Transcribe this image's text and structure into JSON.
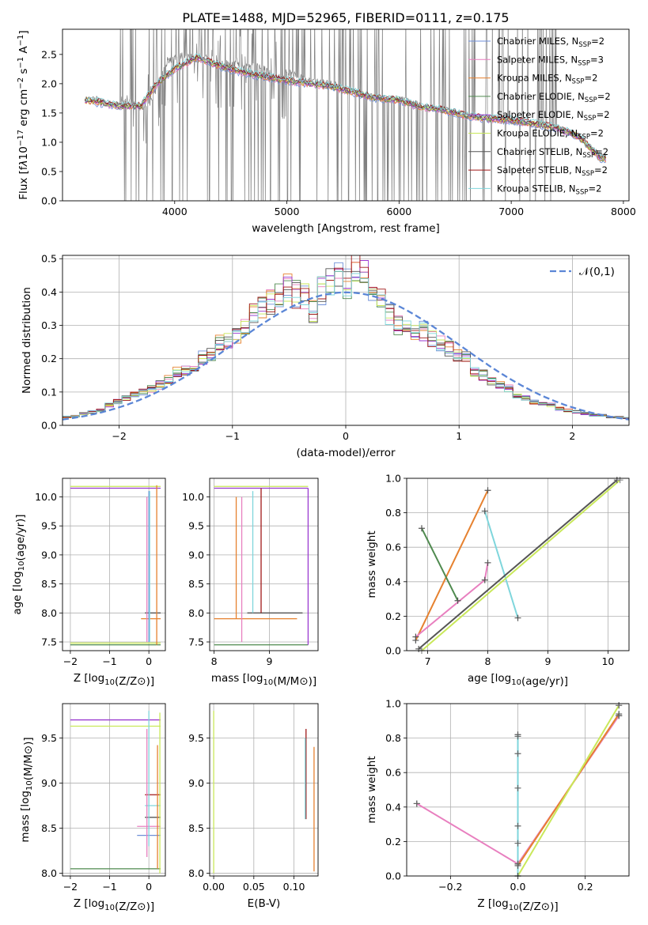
{
  "figure": {
    "title": "PLATE=1488, MJD=52965, FIBERID=0111, z=0.175"
  },
  "colors": {
    "observed": "#808080",
    "models": [
      "#6f8fd8",
      "#e87fbf",
      "#e6812f",
      "#4f8a4f",
      "#9a3ad0",
      "#c9e85a",
      "#555555",
      "#a01818",
      "#7fd6dc"
    ],
    "gauss": "#5b86d6"
  },
  "chart_data": [
    {
      "id": "spectrum",
      "type": "line",
      "xlabel": "wavelength [Angstrom, rest frame]",
      "ylabel": "Flux [f_λ 10^-17 erg cm^-2 s^-1 A^-1]",
      "xlim": [
        3000,
        8050
      ],
      "ylim": [
        0,
        2.93
      ],
      "xticks": [
        4000,
        5000,
        6000,
        7000,
        8000
      ],
      "yticks": [
        0.0,
        0.5,
        1.0,
        1.5,
        2.0,
        2.5
      ],
      "grid": false,
      "legend_position": "upper-right",
      "observed_sparse": {
        "x": [
          3200,
          3300,
          3400,
          3500,
          3600,
          3700,
          3800,
          3900,
          4000,
          4100,
          4200,
          4300,
          4400,
          4500,
          4600,
          4700,
          4800,
          4900,
          5000,
          5200,
          5400,
          5600,
          5800,
          6000,
          6200,
          6400,
          6600,
          6800,
          7000,
          7200,
          7400,
          7600,
          7800
        ],
        "y": [
          1.72,
          1.74,
          1.65,
          1.66,
          1.7,
          1.6,
          1.7,
          2.3,
          2.45,
          2.5,
          2.4,
          2.45,
          2.35,
          2.35,
          2.3,
          2.3,
          2.25,
          2.1,
          2.2,
          2.05,
          2.0,
          1.85,
          1.75,
          1.75,
          1.62,
          1.55,
          1.45,
          1.4,
          1.35,
          1.3,
          1.25,
          1.1,
          0.75
        ]
      },
      "series": [
        {
          "name": "Chabrier MILES, N_SSP=2"
        },
        {
          "name": "Salpeter MILES, N_SSP=3"
        },
        {
          "name": "Kroupa MILES, N_SSP=2"
        },
        {
          "name": "Chabrier ELODIE, N_SSP=2"
        },
        {
          "name": "Salpeter ELODIE, N_SSP=2"
        },
        {
          "name": "Kroupa ELODIE, N_SSP=2"
        },
        {
          "name": "Chabrier STELIB, N_SSP=2"
        },
        {
          "name": "Salpeter STELIB, N_SSP=2"
        },
        {
          "name": "Kroupa STELIB, N_SSP=2"
        }
      ],
      "legend_labels": [
        {
          "pre": "Chabrier MILES, N",
          "sub": "SSP",
          "post": "=2"
        },
        {
          "pre": "Salpeter MILES, N",
          "sub": "SSP",
          "post": "=3"
        },
        {
          "pre": "Kroupa MILES, N",
          "sub": "SSP",
          "post": "=2"
        },
        {
          "pre": "Chabrier ELODIE, N",
          "sub": "SSP",
          "post": "=2"
        },
        {
          "pre": "Salpeter ELODIE, N",
          "sub": "SSP",
          "post": "=2"
        },
        {
          "pre": "Kroupa ELODIE, N",
          "sub": "SSP",
          "post": "=2"
        },
        {
          "pre": "Chabrier STELIB, N",
          "sub": "SSP",
          "post": "=2"
        },
        {
          "pre": "Salpeter STELIB, N",
          "sub": "SSP",
          "post": "=2"
        },
        {
          "pre": "Kroupa STELIB, N",
          "sub": "SSP",
          "post": "=2"
        }
      ],
      "model_continuum": {
        "x": [
          3200,
          3500,
          3700,
          3800,
          3900,
          4000,
          4200,
          4400,
          4600,
          4800,
          5000,
          5200,
          5400,
          5600,
          5800,
          6000,
          6200,
          6400,
          6600,
          6800,
          7000,
          7200,
          7400,
          7600,
          7800
        ],
        "y": [
          1.72,
          1.62,
          1.62,
          1.9,
          2.1,
          2.25,
          2.45,
          2.3,
          2.2,
          2.12,
          2.05,
          2.0,
          1.95,
          1.85,
          1.75,
          1.72,
          1.6,
          1.55,
          1.45,
          1.4,
          1.38,
          1.32,
          1.25,
          1.1,
          0.72
        ]
      }
    },
    {
      "id": "residual_histogram",
      "type": "line",
      "xlabel": "(data-model)/error",
      "ylabel": "Normed distribution",
      "xlim": [
        -2.5,
        2.5
      ],
      "ylim": [
        0,
        0.51
      ],
      "xticks": [
        -2,
        -1,
        0,
        1,
        2
      ],
      "yticks": [
        0.0,
        0.1,
        0.2,
        0.3,
        0.4,
        0.5
      ],
      "grid": true,
      "legend_position": "upper-right",
      "gaussian_label": "𝒩(0,1)",
      "bin_edges_start": -2.5,
      "bin_width": 0.1,
      "histogram_envelope": [
        0.025,
        0.028,
        0.035,
        0.04,
        0.045,
        0.06,
        0.07,
        0.08,
        0.09,
        0.1,
        0.11,
        0.12,
        0.135,
        0.16,
        0.16,
        0.18,
        0.2,
        0.21,
        0.25,
        0.25,
        0.27,
        0.3,
        0.33,
        0.35,
        0.37,
        0.38,
        0.41,
        0.39,
        0.38,
        0.34,
        0.4,
        0.43,
        0.44,
        0.42,
        0.47,
        0.45,
        0.41,
        0.38,
        0.33,
        0.3,
        0.29,
        0.27,
        0.28,
        0.26,
        0.24,
        0.23,
        0.21,
        0.2,
        0.16,
        0.15,
        0.13,
        0.12,
        0.11,
        0.09,
        0.08,
        0.07,
        0.065,
        0.06,
        0.05,
        0.045,
        0.04,
        0.035,
        0.03,
        0.03,
        0.025,
        0.025,
        0.022,
        0.022,
        0.02,
        0.02
      ]
    },
    {
      "id": "age_vs_Z",
      "type": "scatter",
      "xlabel": "Z [log10(Z/Z⊙)]",
      "ylabel": "age [log10(age/yr)]",
      "xlim": [
        -2.2,
        0.42
      ],
      "ylim": [
        7.35,
        10.32
      ],
      "xticks": [
        -2,
        -1,
        0
      ],
      "yticks": [
        7.5,
        8.0,
        8.5,
        9.0,
        9.5,
        10.0
      ],
      "grid": true,
      "segments": [
        {
          "series": 4,
          "x": [
            -2.0,
            0.3
          ],
          "y": 10.15
        },
        {
          "series": 5,
          "x": [
            -2.0,
            0.3
          ],
          "y": 10.18
        },
        {
          "series": 3,
          "x": [
            -2.0,
            0.3
          ],
          "y": 7.45
        },
        {
          "series": 5,
          "x": [
            -2.0,
            0.3
          ],
          "y": 7.48
        },
        {
          "series": 6,
          "x": [
            -0.1,
            0.3
          ],
          "y": 8.0
        },
        {
          "series": 2,
          "x": [
            -0.2,
            0.3
          ],
          "y": 7.9
        }
      ],
      "vertical_lines": [
        {
          "series": 0,
          "x": 0.0,
          "y": [
            7.5,
            10.1
          ]
        },
        {
          "series": 8,
          "x": 0.02,
          "y": [
            7.5,
            10.1
          ]
        },
        {
          "series": 1,
          "x": -0.05,
          "y": [
            7.5,
            10.0
          ]
        },
        {
          "series": 2,
          "x": 0.2,
          "y": [
            7.45,
            10.2
          ]
        }
      ]
    },
    {
      "id": "age_vs_mass",
      "type": "scatter",
      "xlabel": "mass [log10(M/M⊙)]",
      "ylabel": "",
      "xlim": [
        7.92,
        9.88
      ],
      "ylim": [
        7.35,
        10.32
      ],
      "xticks": [
        8,
        9
      ],
      "yticks": [
        7.5,
        8.0,
        8.5,
        9.0,
        9.5,
        10.0
      ],
      "grid": true,
      "segments": [
        {
          "series": 4,
          "x": [
            8.0,
            9.7
          ],
          "y": 10.15
        },
        {
          "series": 5,
          "x": [
            8.0,
            9.7
          ],
          "y": 10.18
        },
        {
          "series": 3,
          "x": [
            8.0,
            9.7
          ],
          "y": 7.45
        },
        {
          "series": 6,
          "x": [
            8.6,
            9.6
          ],
          "y": 8.0
        },
        {
          "series": 2,
          "x": [
            8.0,
            9.5
          ],
          "y": 7.9
        }
      ],
      "vertical_lines": [
        {
          "series": 2,
          "x": 8.4,
          "y": [
            7.9,
            10.0
          ]
        },
        {
          "series": 1,
          "x": 8.5,
          "y": [
            7.5,
            10.0
          ]
        },
        {
          "series": 8,
          "x": 8.7,
          "y": [
            8.0,
            10.1
          ]
        },
        {
          "series": 7,
          "x": 8.85,
          "y": [
            8.0,
            10.15
          ]
        },
        {
          "series": 4,
          "x": 9.7,
          "y": [
            7.45,
            10.15
          ]
        }
      ]
    },
    {
      "id": "massweight_vs_age",
      "type": "line",
      "xlabel": "age [log10(age/yr)]",
      "ylabel": "mass weight",
      "xlim": [
        6.65,
        10.35
      ],
      "ylim": [
        0,
        1.0
      ],
      "xticks": [
        7,
        8,
        9,
        10
      ],
      "yticks": [
        0.0,
        0.2,
        0.4,
        0.6,
        0.8,
        1.0
      ],
      "grid": true,
      "lines": [
        {
          "series": 2,
          "x": [
            6.8,
            8.0
          ],
          "y": [
            0.06,
            0.93
          ]
        },
        {
          "series": 1,
          "x": [
            6.8,
            7.95,
            8.0
          ],
          "y": [
            0.08,
            0.41,
            0.51
          ]
        },
        {
          "series": 3,
          "x": [
            6.9,
            7.5
          ],
          "y": [
            0.71,
            0.29
          ]
        },
        {
          "series": 8,
          "x": [
            7.95,
            8.5
          ],
          "y": [
            0.81,
            0.19
          ]
        },
        {
          "series": 6,
          "x": [
            6.85,
            10.15
          ],
          "y": [
            0.01,
            0.99
          ]
        },
        {
          "series": 5,
          "x": [
            6.9,
            10.2
          ],
          "y": [
            0.0,
            0.99
          ]
        }
      ]
    },
    {
      "id": "mass_vs_Z",
      "type": "scatter",
      "xlabel": "Z [log10(Z/Z⊙)]",
      "ylabel": "mass [log10(M/M⊙)]",
      "xlim": [
        -2.2,
        0.42
      ],
      "ylim": [
        7.97,
        9.88
      ],
      "xticks": [
        -2,
        -1,
        0
      ],
      "yticks": [
        8.0,
        8.5,
        9.0,
        9.5
      ],
      "grid": true,
      "segments": [
        {
          "series": 4,
          "x": [
            -2.0,
            0.3
          ],
          "y": 9.7
        },
        {
          "series": 5,
          "x": [
            -2.0,
            0.3
          ],
          "y": 9.63
        },
        {
          "series": 3,
          "x": [
            -2.0,
            0.3
          ],
          "y": 8.05
        },
        {
          "series": 7,
          "x": [
            -0.1,
            0.3
          ],
          "y": 8.87
        },
        {
          "series": 8,
          "x": [
            -0.1,
            0.3
          ],
          "y": 8.75
        },
        {
          "series": 6,
          "x": [
            -0.1,
            0.3
          ],
          "y": 8.62
        },
        {
          "series": 1,
          "x": [
            -0.3,
            0.3
          ],
          "y": 8.52
        },
        {
          "series": 0,
          "x": [
            -0.3,
            0.3
          ],
          "y": 8.42
        }
      ],
      "vertical_lines": [
        {
          "series": 8,
          "x": 0.0,
          "y": [
            8.3,
            9.8
          ]
        },
        {
          "series": 1,
          "x": -0.05,
          "y": [
            8.18,
            9.6
          ]
        },
        {
          "series": 2,
          "x": 0.22,
          "y": [
            8.05,
            9.42
          ]
        },
        {
          "series": 5,
          "x": 0.28,
          "y": [
            8.0,
            9.78
          ]
        }
      ]
    },
    {
      "id": "mass_vs_ebv",
      "type": "scatter",
      "xlabel": "E(B-V)",
      "ylabel": "",
      "xlim": [
        -0.005,
        0.13
      ],
      "ylim": [
        7.97,
        9.88
      ],
      "xticks": [
        0.0,
        0.05,
        0.1
      ],
      "xticklabels": [
        "0.00",
        "0.05",
        "0.10"
      ],
      "yticks": [
        8.0,
        8.5,
        9.0,
        9.5
      ],
      "grid": true,
      "vertical_lines": [
        {
          "series": 5,
          "x": 0.0,
          "y": [
            8.0,
            9.8
          ]
        },
        {
          "series": 7,
          "x": 0.115,
          "y": [
            8.6,
            9.6
          ]
        },
        {
          "series": 8,
          "x": 0.114,
          "y": [
            8.6,
            9.5
          ]
        },
        {
          "series": 2,
          "x": 0.125,
          "y": [
            8.02,
            9.4
          ]
        }
      ]
    },
    {
      "id": "massweight_vs_Z",
      "type": "line",
      "xlabel": "Z [log10(Z/Z⊙)]",
      "ylabel": "mass weight",
      "xlim": [
        -0.33,
        0.33
      ],
      "ylim": [
        0,
        1.0
      ],
      "xticks": [
        -0.2,
        0.0,
        0.2
      ],
      "yticks": [
        0.0,
        0.2,
        0.4,
        0.6,
        0.8,
        1.0
      ],
      "grid": true,
      "lines": [
        {
          "series": 1,
          "x": [
            -0.3,
            0.0,
            0.3
          ],
          "y": [
            0.42,
            0.07,
            0.93
          ]
        },
        {
          "series": 2,
          "x": [
            0.0,
            0.3
          ],
          "y": [
            0.06,
            0.94
          ]
        },
        {
          "series": 5,
          "x": [
            0.0,
            0.3
          ],
          "y": [
            0.0,
            0.99
          ]
        },
        {
          "series": 8,
          "x": [
            0.0,
            0.0
          ],
          "y": [
            0.0,
            0.82
          ]
        }
      ],
      "markers": [
        {
          "x": 0.0,
          "y": 0.81
        },
        {
          "x": 0.0,
          "y": 0.71
        },
        {
          "x": 0.0,
          "y": 0.51
        },
        {
          "x": 0.0,
          "y": 0.29
        },
        {
          "x": 0.0,
          "y": 0.19
        },
        {
          "x": 0.0,
          "y": 0.07
        },
        {
          "x": -0.3,
          "y": 0.42
        },
        {
          "x": 0.3,
          "y": 0.93
        },
        {
          "x": 0.3,
          "y": 0.99
        }
      ]
    }
  ]
}
